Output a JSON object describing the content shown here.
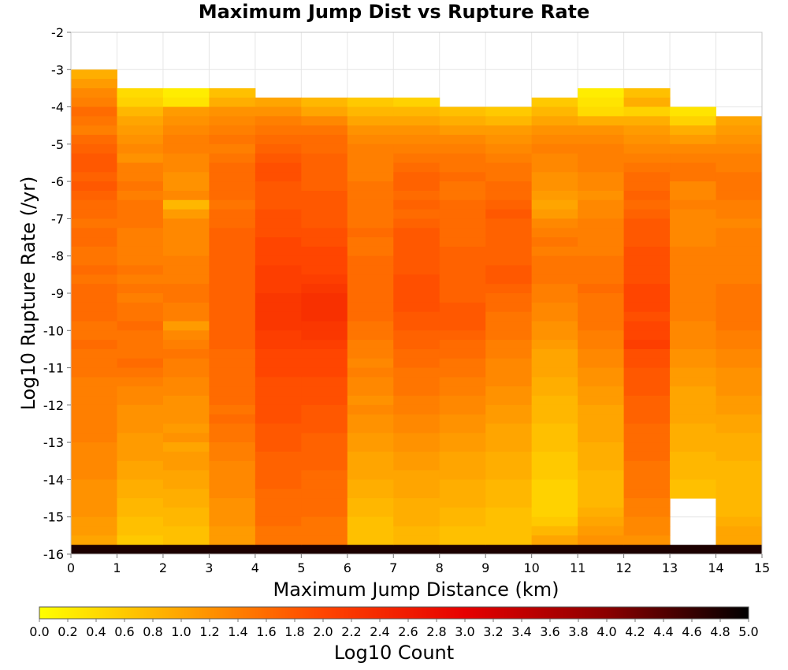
{
  "chart_data": {
    "type": "heatmap",
    "title": "Maximum Jump Dist vs Rupture Rate",
    "xlabel": "Maximum Jump Distance (km)",
    "ylabel": "Log10 Rupture Rate (/yr)",
    "xlim": [
      0,
      15
    ],
    "ylim": [
      -16,
      -2
    ],
    "x_ticks": [
      "0",
      "1",
      "2",
      "3",
      "4",
      "5",
      "6",
      "7",
      "8",
      "9",
      "10",
      "11",
      "12",
      "13",
      "14",
      "15"
    ],
    "y_ticks": [
      "-2",
      "-3",
      "-4",
      "-5",
      "-6",
      "-7",
      "-8",
      "-9",
      "-10",
      "-11",
      "-12",
      "-13",
      "-14",
      "-15",
      "-16"
    ],
    "x_bin_width": 1,
    "y_bin_width": 0.25,
    "column_tops": [
      -3.0,
      -3.5,
      -3.5,
      -3.5,
      -3.75,
      -3.75,
      -3.75,
      -3.75,
      -4.0,
      -4.0,
      -3.75,
      -3.5,
      -3.5,
      -4.0,
      -4.25
    ],
    "columns_log10_count": [
      [
        0.9,
        1.1,
        1.3,
        1.4,
        1.6,
        1.5,
        1.4,
        1.6,
        1.7,
        1.8,
        1.8,
        1.7,
        1.8,
        1.7,
        1.6,
        1.6,
        1.5,
        1.6,
        1.6,
        1.5,
        1.5,
        1.6,
        1.5,
        1.6,
        1.6,
        1.6,
        1.6,
        1.5,
        1.5,
        1.6,
        1.5,
        1.5,
        1.5,
        1.4,
        1.4,
        1.4,
        1.4,
        1.4,
        1.4,
        1.4,
        1.3,
        1.3,
        1.3,
        1.3,
        1.2,
        1.2,
        1.2,
        1.2,
        1.1,
        1.1,
        1.0,
        1.0
      ],
      [
        0.4,
        0.5,
        0.8,
        1.0,
        1.1,
        1.2,
        1.3,
        1.2,
        1.4,
        1.4,
        1.5,
        1.4,
        1.5,
        1.5,
        1.5,
        1.4,
        1.4,
        1.4,
        1.4,
        1.5,
        1.4,
        1.5,
        1.4,
        1.5,
        1.5,
        1.6,
        1.5,
        1.5,
        1.5,
        1.6,
        1.5,
        1.4,
        1.3,
        1.3,
        1.2,
        1.2,
        1.2,
        1.1,
        1.1,
        1.1,
        1.0,
        1.0,
        0.9,
        0.9,
        0.8,
        0.8,
        0.7,
        0.7,
        0.6,
        0.6
      ],
      [
        0.2,
        0.3,
        1.1,
        1.2,
        1.3,
        1.4,
        1.4,
        1.3,
        1.3,
        1.2,
        1.2,
        1.3,
        0.8,
        1.1,
        1.3,
        1.3,
        1.3,
        1.3,
        1.4,
        1.4,
        1.4,
        1.5,
        1.5,
        1.4,
        1.4,
        1.1,
        1.3,
        1.4,
        1.5,
        1.4,
        1.4,
        1.3,
        1.3,
        1.2,
        1.2,
        1.2,
        1.1,
        1.2,
        1.0,
        1.1,
        1.1,
        1.0,
        1.0,
        0.9,
        0.9,
        0.8,
        0.8,
        0.7,
        0.7,
        0.6
      ],
      [
        0.7,
        0.9,
        1.2,
        1.3,
        1.4,
        1.5,
        1.4,
        1.5,
        1.6,
        1.6,
        1.6,
        1.6,
        1.5,
        1.6,
        1.6,
        1.7,
        1.7,
        1.7,
        1.7,
        1.7,
        1.7,
        1.7,
        1.7,
        1.7,
        1.7,
        1.7,
        1.7,
        1.7,
        1.6,
        1.6,
        1.6,
        1.6,
        1.6,
        1.6,
        1.5,
        1.6,
        1.5,
        1.5,
        1.4,
        1.4,
        1.3,
        1.3,
        1.3,
        1.3,
        1.2,
        1.2,
        1.2,
        1.1,
        1.1
      ],
      [
        1.0,
        1.2,
        1.4,
        1.5,
        1.6,
        1.7,
        1.8,
        1.9,
        1.9,
        1.8,
        1.8,
        1.8,
        1.9,
        1.9,
        1.9,
        2.0,
        2.0,
        2.0,
        2.1,
        2.1,
        2.1,
        2.2,
        2.2,
        2.2,
        2.2,
        2.1,
        2.1,
        2.0,
        2.0,
        2.0,
        1.9,
        1.9,
        1.9,
        1.9,
        1.9,
        1.8,
        1.8,
        1.8,
        1.7,
        1.7,
        1.7,
        1.7,
        1.6,
        1.6,
        1.6,
        1.6,
        1.5,
        1.5
      ],
      [
        0.8,
        1.0,
        1.3,
        1.5,
        1.6,
        1.6,
        1.7,
        1.7,
        1.7,
        1.7,
        1.8,
        1.8,
        1.8,
        1.8,
        1.9,
        1.9,
        2.0,
        2.0,
        2.0,
        2.1,
        2.2,
        2.3,
        2.3,
        2.3,
        2.2,
        2.2,
        2.1,
        2.0,
        2.0,
        2.0,
        1.9,
        1.9,
        1.9,
        1.8,
        1.8,
        1.8,
        1.7,
        1.7,
        1.7,
        1.7,
        1.6,
        1.6,
        1.6,
        1.6,
        1.6,
        1.5,
        1.5,
        1.5
      ],
      [
        0.6,
        0.8,
        1.0,
        1.2,
        1.3,
        1.4,
        1.4,
        1.4,
        1.4,
        1.5,
        1.5,
        1.5,
        1.5,
        1.5,
        1.6,
        1.5,
        1.5,
        1.6,
        1.6,
        1.6,
        1.6,
        1.6,
        1.6,
        1.6,
        1.5,
        1.5,
        1.4,
        1.4,
        1.3,
        1.4,
        1.3,
        1.3,
        1.2,
        1.3,
        1.2,
        1.2,
        1.1,
        1.1,
        1.0,
        1.0,
        1.0,
        0.9,
        0.9,
        0.8,
        0.8,
        0.7,
        0.7,
        0.7
      ],
      [
        0.5,
        0.8,
        1.0,
        1.2,
        1.3,
        1.4,
        1.5,
        1.6,
        1.7,
        1.7,
        1.6,
        1.7,
        1.6,
        1.7,
        1.8,
        1.8,
        1.8,
        1.8,
        1.8,
        1.9,
        1.9,
        1.9,
        1.9,
        1.8,
        1.8,
        1.7,
        1.7,
        1.6,
        1.6,
        1.5,
        1.5,
        1.5,
        1.4,
        1.4,
        1.3,
        1.3,
        1.2,
        1.2,
        1.1,
        1.1,
        1.0,
        1.0,
        1.0,
        0.9,
        0.9,
        0.9,
        0.8,
        0.8
      ],
      [
        0.7,
        0.9,
        1.1,
        1.3,
        1.4,
        1.5,
        1.5,
        1.6,
        1.5,
        1.5,
        1.6,
        1.6,
        1.6,
        1.6,
        1.6,
        1.7,
        1.7,
        1.7,
        1.7,
        1.7,
        1.7,
        1.8,
        1.8,
        1.8,
        1.7,
        1.6,
        1.6,
        1.5,
        1.5,
        1.4,
        1.4,
        1.3,
        1.3,
        1.2,
        1.2,
        1.1,
        1.1,
        1.0,
        1.0,
        1.0,
        0.9,
        0.9,
        0.9,
        0.8,
        0.8,
        0.7,
        0.7
      ],
      [
        0.6,
        0.8,
        1.1,
        1.2,
        1.3,
        1.4,
        1.5,
        1.5,
        1.6,
        1.6,
        1.7,
        1.8,
        1.7,
        1.7,
        1.7,
        1.7,
        1.7,
        1.8,
        1.8,
        1.7,
        1.6,
        1.6,
        1.5,
        1.5,
        1.5,
        1.4,
        1.4,
        1.3,
        1.3,
        1.3,
        1.2,
        1.2,
        1.1,
        1.1,
        1.0,
        1.0,
        1.0,
        0.9,
        0.9,
        0.9,
        0.8,
        0.8,
        0.8,
        0.7,
        0.7,
        0.7,
        0.7
      ],
      [
        0.6,
        0.8,
        1.0,
        1.2,
        1.3,
        1.4,
        1.3,
        1.3,
        1.2,
        1.2,
        1.1,
        1.0,
        1.1,
        1.3,
        1.4,
        1.5,
        1.4,
        1.5,
        1.5,
        1.5,
        1.4,
        1.4,
        1.3,
        1.3,
        1.2,
        1.2,
        1.1,
        1.0,
        1.0,
        1.0,
        0.9,
        0.9,
        0.8,
        0.8,
        0.8,
        0.7,
        0.7,
        0.7,
        0.6,
        0.6,
        0.6,
        0.5,
        0.5,
        0.5,
        0.5,
        0.6,
        0.8,
        1.0
      ],
      [
        0.2,
        0.3,
        0.4,
        0.9,
        1.2,
        1.3,
        1.4,
        1.4,
        1.4,
        1.3,
        1.3,
        1.2,
        1.3,
        1.3,
        1.4,
        1.4,
        1.4,
        1.4,
        1.5,
        1.5,
        1.5,
        1.6,
        1.5,
        1.5,
        1.5,
        1.5,
        1.4,
        1.4,
        1.3,
        1.3,
        1.2,
        1.2,
        1.1,
        1.1,
        1.0,
        1.0,
        1.0,
        1.0,
        0.9,
        0.9,
        0.9,
        0.8,
        0.8,
        0.8,
        0.8,
        0.9,
        1.0,
        1.1,
        1.2
      ],
      [
        0.7,
        0.9,
        0.5,
        0.9,
        1.1,
        1.2,
        1.3,
        1.4,
        1.5,
        1.6,
        1.6,
        1.7,
        1.6,
        1.7,
        1.8,
        1.8,
        1.8,
        1.9,
        1.9,
        1.9,
        1.9,
        2.0,
        2.0,
        2.0,
        1.9,
        2.0,
        2.0,
        2.1,
        1.9,
        1.9,
        1.8,
        1.8,
        1.8,
        1.7,
        1.7,
        1.7,
        1.6,
        1.6,
        1.6,
        1.6,
        1.5,
        1.5,
        1.5,
        1.5,
        1.4,
        1.4,
        1.3,
        1.3,
        1.2,
        1.2
      ],
      [
        0.3,
        0.5,
        0.9,
        1.1,
        1.3,
        1.4,
        1.5,
        1.5,
        1.3,
        1.3,
        1.4,
        1.3,
        1.3,
        1.3,
        1.3,
        1.4,
        1.4,
        1.4,
        1.4,
        1.4,
        1.4,
        1.4,
        1.4,
        1.3,
        1.3,
        1.3,
        1.2,
        1.2,
        1.1,
        1.1,
        1.0,
        1.0,
        1.0,
        1.0,
        0.9,
        0.9,
        0.9,
        0.8,
        0.8,
        0.8,
        0.7,
        0.7
      ],
      [
        1.0,
        1.1,
        1.2,
        1.3,
        1.4,
        1.4,
        1.5,
        1.5,
        1.5,
        1.4,
        1.4,
        1.3,
        1.4,
        1.4,
        1.4,
        1.4,
        1.4,
        1.4,
        1.5,
        1.5,
        1.5,
        1.5,
        1.5,
        1.4,
        1.4,
        1.3,
        1.3,
        1.2,
        1.2,
        1.2,
        1.1,
        1.1,
        1.0,
        1.0,
        0.9,
        0.9,
        0.9,
        0.8,
        0.8,
        0.8,
        0.8,
        0.8,
        0.8,
        0.9,
        1.0,
        1.0
      ]
    ],
    "bottom_row_log10_count": 4.8,
    "colorbar": {
      "label": "Log10 Count",
      "min": 0.0,
      "max": 5.0,
      "ticks": [
        "0.0",
        "0.2",
        "0.4",
        "0.6",
        "0.8",
        "1.0",
        "1.2",
        "1.4",
        "1.6",
        "1.8",
        "2.0",
        "2.2",
        "2.4",
        "2.6",
        "2.8",
        "3.0",
        "3.2",
        "3.4",
        "3.6",
        "3.8",
        "4.0",
        "4.2",
        "4.4",
        "4.6",
        "4.8",
        "5.0"
      ],
      "stops": [
        "#ffff00",
        "#ffa500",
        "#ff4500",
        "#e60000",
        "#8b0000",
        "#000000"
      ]
    }
  }
}
